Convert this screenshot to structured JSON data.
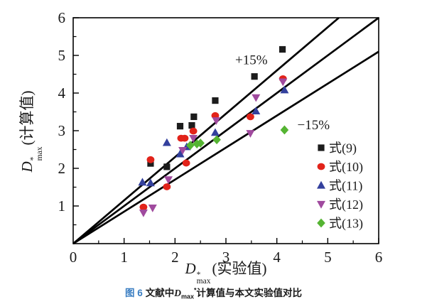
{
  "chart_data": {
    "type": "scatter",
    "title": "",
    "xlabel": {
      "base": "D",
      "sup": "*",
      "sub": "max",
      "paren": "(实验值)"
    },
    "ylabel": {
      "base": "D",
      "sup": "*",
      "sub": "max",
      "paren": "(计算值)"
    },
    "xlim": [
      0,
      6
    ],
    "ylim": [
      0,
      6
    ],
    "x_ticks": [
      0,
      1,
      2,
      3,
      4,
      5,
      6
    ],
    "y_ticks": [
      0,
      1,
      2,
      3,
      4,
      5,
      6
    ],
    "minor_tick_step": 0.5,
    "grid": false,
    "axis_color": "#000000",
    "reference_lines": [
      {
        "name": "plus-15-percent-line",
        "slope": 1.15
      },
      {
        "name": "identity-line",
        "slope": 1.0
      },
      {
        "name": "minus-15-percent-line",
        "slope": 0.85
      }
    ],
    "annotations": [
      {
        "text": "+15%",
        "x": 3.5,
        "y": 4.9
      },
      {
        "text": "−15%",
        "x": 4.72,
        "y": 3.17
      }
    ],
    "legend_position": "lower-right",
    "series": [
      {
        "name": "式(9)",
        "marker": "square",
        "color": "#1c1c1c",
        "points": [
          [
            1.52,
            2.13
          ],
          [
            1.84,
            2.04
          ],
          [
            2.1,
            3.12
          ],
          [
            2.33,
            3.14
          ],
          [
            2.37,
            3.37
          ],
          [
            2.79,
            3.8
          ],
          [
            3.56,
            4.44
          ],
          [
            4.11,
            5.16
          ]
        ]
      },
      {
        "name": "式(10)",
        "marker": "circle",
        "color": "#e2231a",
        "points": [
          [
            1.38,
            0.97
          ],
          [
            1.52,
            2.23
          ],
          [
            1.84,
            1.51
          ],
          [
            2.12,
            2.8
          ],
          [
            2.19,
            2.8
          ],
          [
            2.22,
            2.14
          ],
          [
            2.36,
            2.99
          ],
          [
            2.79,
            3.4
          ],
          [
            3.48,
            3.37
          ],
          [
            4.12,
            4.38
          ]
        ]
      },
      {
        "name": "式(11)",
        "marker": "triangle-up",
        "color": "#33409d",
        "points": [
          [
            1.36,
            1.63
          ],
          [
            1.52,
            1.61
          ],
          [
            1.84,
            2.68
          ],
          [
            2.1,
            2.38
          ],
          [
            2.23,
            2.57
          ],
          [
            2.79,
            2.95
          ],
          [
            3.59,
            3.52
          ],
          [
            4.15,
            4.08
          ]
        ]
      },
      {
        "name": "式(12)",
        "marker": "triangle-down",
        "color": "#a04a9e",
        "points": [
          [
            1.38,
            0.82
          ],
          [
            1.56,
            0.95
          ],
          [
            1.87,
            1.7
          ],
          [
            2.15,
            2.48
          ],
          [
            2.36,
            2.8
          ],
          [
            2.81,
            3.27
          ],
          [
            3.48,
            2.93
          ],
          [
            3.59,
            3.88
          ],
          [
            4.12,
            4.3
          ]
        ]
      },
      {
        "name": "式(13)",
        "marker": "diamond",
        "color": "#55b432",
        "points": [
          [
            2.3,
            2.61
          ],
          [
            2.43,
            2.65
          ],
          [
            2.5,
            2.67
          ],
          [
            2.82,
            2.76
          ],
          [
            4.15,
            3.02
          ]
        ]
      }
    ]
  },
  "caption": {
    "prefix": "图 6",
    "prefix_color": "#3a7ec2",
    "body1": "文献中",
    "d_base": "D",
    "d_sub": "max",
    "d_sup": "*",
    "body2": "计算值与本文实验值对比"
  }
}
